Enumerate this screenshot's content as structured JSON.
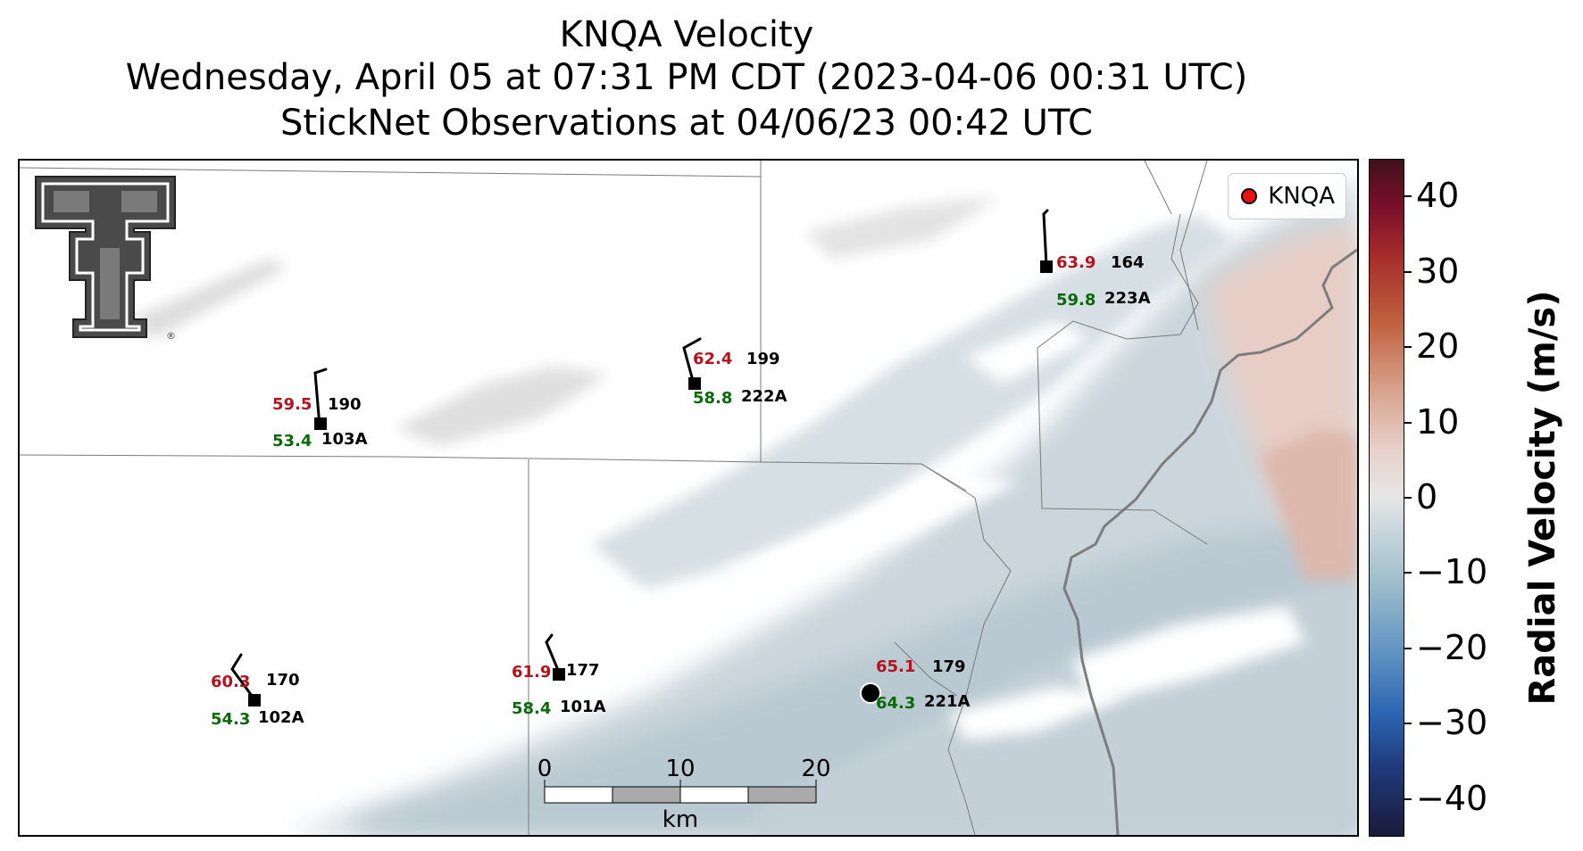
{
  "title": {
    "line1": "KNQA Velocity",
    "line2": "Wednesday, April 05 at 07:31 PM CDT (2023-04-06 00:31 UTC)",
    "line3": "StickNet Observations at 04/06/23 00:42 UTC"
  },
  "legend": {
    "label": "KNQA",
    "marker_color": "#ee1111"
  },
  "logo": {
    "icon": "texas-tech-double-t-logo",
    "text": "®"
  },
  "stations": [
    {
      "id": "103A",
      "temp": "59.5",
      "dewpoint": "53.4",
      "pressure": "190"
    },
    {
      "id": "222A",
      "temp": "62.4",
      "dewpoint": "58.8",
      "pressure": "199"
    },
    {
      "id": "223A",
      "temp": "63.9",
      "dewpoint": "59.8",
      "pressure": "164"
    },
    {
      "id": "102A",
      "temp": "60.3",
      "dewpoint": "54.3",
      "pressure": "170"
    },
    {
      "id": "101A",
      "temp": "61.9",
      "dewpoint": "58.4",
      "pressure": "177"
    },
    {
      "id": "221A",
      "temp": "65.1",
      "dewpoint": "64.3",
      "pressure": "179"
    }
  ],
  "scalebar": {
    "labels": [
      "0",
      "10",
      "20"
    ],
    "unit": "km"
  },
  "colorbar": {
    "label": "Radial Velocity (m/s)",
    "ticks": [
      "40",
      "30",
      "20",
      "10",
      "0",
      "−10",
      "−20",
      "−30",
      "−40"
    ],
    "range": [
      -45,
      45
    ]
  },
  "colors": {
    "temperature_text": "#b5121b",
    "dewpoint_text": "#0a6a0a",
    "velocity_inbound": "#a6bcc7",
    "velocity_outbound": "#d9a99c"
  }
}
